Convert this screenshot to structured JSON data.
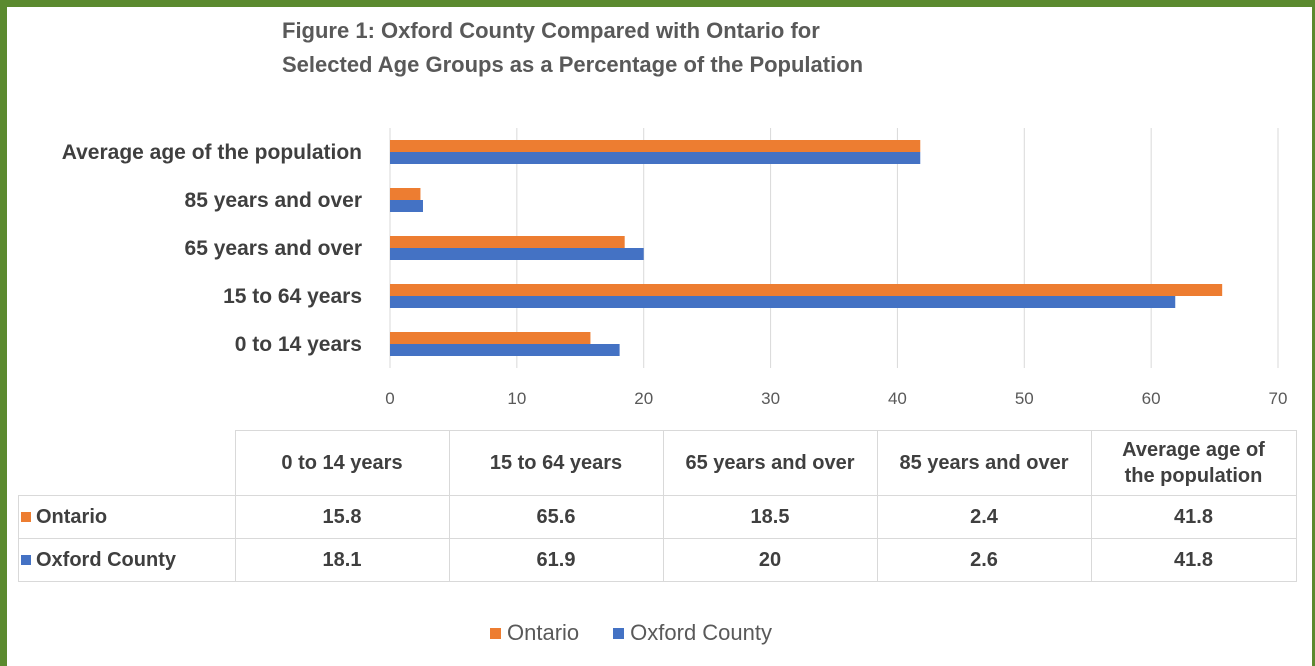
{
  "chart_data": {
    "type": "bar",
    "orientation": "horizontal",
    "title_line1": "Figure 1: Oxford County Compared with Ontario for",
    "title_line2": "Selected Age Groups as a Percentage of the Population",
    "categories": [
      "0 to 14 years",
      "15 to 64 years",
      "65 years and over",
      "85 years and over",
      "Average age of the population"
    ],
    "table_headers": [
      "0 to 14 years",
      "15 to 64 years",
      "65 years and over",
      "85 years and over",
      "Average age of\nthe population"
    ],
    "series": [
      {
        "name": "Ontario",
        "color": "#ed7d31",
        "values": [
          15.8,
          65.6,
          18.5,
          2.4,
          41.8
        ],
        "display": [
          "15.8",
          "65.6",
          "18.5",
          "2.4",
          "41.8"
        ]
      },
      {
        "name": "Oxford County",
        "color": "#4472c4",
        "values": [
          18.1,
          61.9,
          20,
          2.6,
          41.8
        ],
        "display": [
          "18.1",
          "61.9",
          "20",
          "2.6",
          "41.8"
        ]
      }
    ],
    "xlim": [
      0,
      70
    ],
    "xticks": [
      0,
      10,
      20,
      30,
      40,
      50,
      60,
      70
    ],
    "grid": true,
    "legend_position": "bottom",
    "data_table": true
  }
}
